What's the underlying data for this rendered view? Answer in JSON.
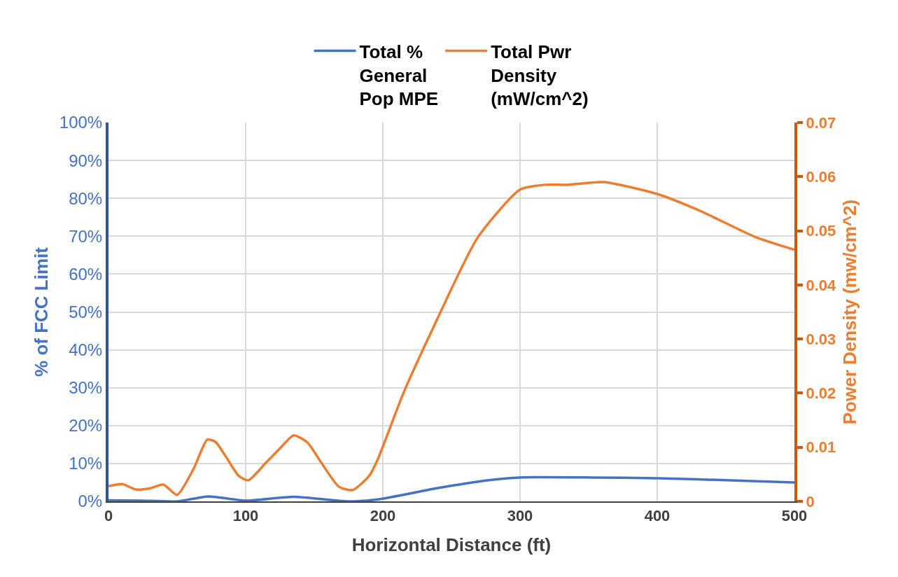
{
  "chart_data": {
    "type": "line",
    "xlabel": "Horizontal Distance (ft)",
    "ylabel": "% of FCC Limit",
    "y2label": "Power Density (mw/cm^2)",
    "xlim": [
      0,
      500
    ],
    "xticks": [
      0,
      100,
      200,
      300,
      400,
      500
    ],
    "ylim": [
      0,
      100
    ],
    "yticks": [
      {
        "value": 0,
        "label": "0%"
      },
      {
        "value": 10,
        "label": "10%"
      },
      {
        "value": 20,
        "label": "20%"
      },
      {
        "value": 30,
        "label": "30%"
      },
      {
        "value": 40,
        "label": "40%"
      },
      {
        "value": 50,
        "label": "50%"
      },
      {
        "value": 60,
        "label": "60%"
      },
      {
        "value": 70,
        "label": "70%"
      },
      {
        "value": 80,
        "label": "80%"
      },
      {
        "value": 90,
        "label": "90%"
      },
      {
        "value": 100,
        "label": "100%"
      }
    ],
    "y2lim": [
      0,
      0.07
    ],
    "y2ticks": [
      0,
      0.01,
      0.02,
      0.03,
      0.04,
      0.05,
      0.06,
      0.07
    ],
    "grid": true,
    "legend": "top",
    "marker": "none",
    "line_style": "solid",
    "series": [
      {
        "name": "Total % General Pop MPE",
        "color": "#4472c4",
        "x": [
          0,
          25,
          50,
          73,
          100,
          135,
          175,
          196,
          240,
          275,
          300,
          353,
          400,
          450,
          500
        ],
        "values": [
          0.3,
          0.2,
          0,
          1.3,
          0.2,
          1.2,
          0,
          0.5,
          3.5,
          5.5,
          6.3,
          6.3,
          6.1,
          5.6,
          5
        ]
      },
      {
        "name": "Total Pwr Density (mW/cm^2)",
        "color": "#ed7d31",
        "axis": "y2",
        "x": [
          0,
          10,
          20,
          30,
          40,
          50,
          62,
          72,
          78,
          85,
          95,
          102,
          115,
          125,
          135,
          145,
          155,
          168,
          178,
          190,
          196,
          215,
          236,
          269,
          300,
          318,
          334,
          361,
          400,
          432,
          471,
          500
        ],
        "values": [
          0.0028,
          0.0032,
          0.0022,
          0.0024,
          0.0031,
          0.0012,
          0.006,
          0.0114,
          0.011,
          0.0085,
          0.0047,
          0.0039,
          0.0072,
          0.0098,
          0.0122,
          0.0109,
          0.0072,
          0.0027,
          0.0021,
          0.0047,
          0.0076,
          0.02,
          0.0317,
          0.0487,
          0.0576,
          0.0585,
          0.0585,
          0.059,
          0.0568,
          0.0536,
          0.0489,
          0.0465
        ]
      }
    ]
  }
}
